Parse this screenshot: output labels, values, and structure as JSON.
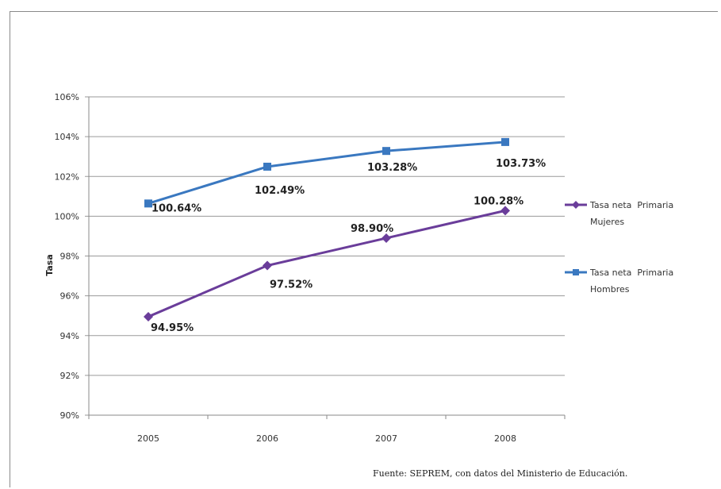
{
  "chart_data": {
    "type": "line",
    "categories": [
      "2005",
      "2006",
      "2007",
      "2008"
    ],
    "series": [
      {
        "name": "Tasa neta  Primaria Mujeres",
        "legend_lines": [
          "Tasa neta  Primaria",
          "Mujeres"
        ],
        "values": [
          94.95,
          97.52,
          98.9,
          100.28
        ],
        "labels": [
          "94.95%",
          "97.52%",
          "98.90%",
          "100.28%"
        ],
        "color": "#6a3d9a",
        "marker": "diamond"
      },
      {
        "name": "Tasa neta  Primaria Hombres",
        "legend_lines": [
          "Tasa neta  Primaria",
          "Hombres"
        ],
        "values": [
          100.64,
          102.49,
          103.28,
          103.73
        ],
        "labels": [
          "100.64%",
          "102.49%",
          "103.28%",
          "103.73%"
        ],
        "color": "#3a78c0",
        "marker": "square"
      }
    ],
    "title": "",
    "xlabel": "",
    "ylabel": "Tasa",
    "ylim": [
      90,
      106
    ],
    "yticks": [
      "90%",
      "92%",
      "94%",
      "96%",
      "98%",
      "100%",
      "102%",
      "104%",
      "106%"
    ],
    "grid": true,
    "legend_position": "right"
  },
  "source_note": "Fuente: SEPREM, con datos del Ministerio de Educación."
}
